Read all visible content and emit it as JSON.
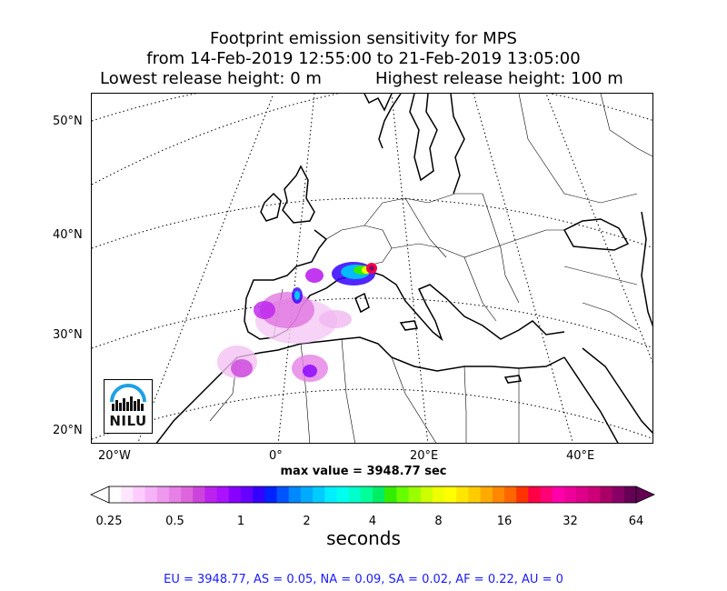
{
  "title": {
    "line1": "Footprint emission sensitivity for MPS",
    "line2": "from 14-Feb-2019 12:55:00 to 21-Feb-2019 13:05:00",
    "line3a": "Lowest release height: 0 m",
    "line3b": "Highest release height: 100 m"
  },
  "map": {
    "lat_labels": [
      "50°N",
      "40°N",
      "30°N",
      "20°N"
    ],
    "lon_labels": [
      "20°W",
      "0°",
      "20°E",
      "40°E"
    ],
    "logo_text": "NILU"
  },
  "max_value": "max value = 3948.77 sec",
  "colorbar": {
    "ticks": [
      "0.25",
      "0.5",
      "1",
      "2",
      "4",
      "8",
      "16",
      "32",
      "64"
    ],
    "label": "seconds",
    "colors": [
      "#ffffff",
      "#ffe6ff",
      "#ffccff",
      "#f7b3f7",
      "#ee99ee",
      "#e680e6",
      "#dd66dd",
      "#cc44dd",
      "#bb22ee",
      "#aa11ff",
      "#8800ff",
      "#6600ff",
      "#3300ff",
      "#0022ff",
      "#0055ff",
      "#0088ff",
      "#00aaff",
      "#00ccff",
      "#00eeff",
      "#00ffee",
      "#00ffcc",
      "#00ff99",
      "#00ee66",
      "#33ee00",
      "#66ff00",
      "#99ff00",
      "#ccff00",
      "#eeff00",
      "#ffff00",
      "#ffe600",
      "#ffcc00",
      "#ffaa00",
      "#ff8800",
      "#ff6600",
      "#ff3300",
      "#ff0044",
      "#ff0077",
      "#ff00aa",
      "#ee0099",
      "#dd0088",
      "#cc0077",
      "#aa0066",
      "#880066",
      "#660055"
    ]
  },
  "region_stats": "EU = 3948.77,  AS = 0.05,  NA = 0.09,  SA = 0.02,  AF = 0.22,  AU = 0"
}
